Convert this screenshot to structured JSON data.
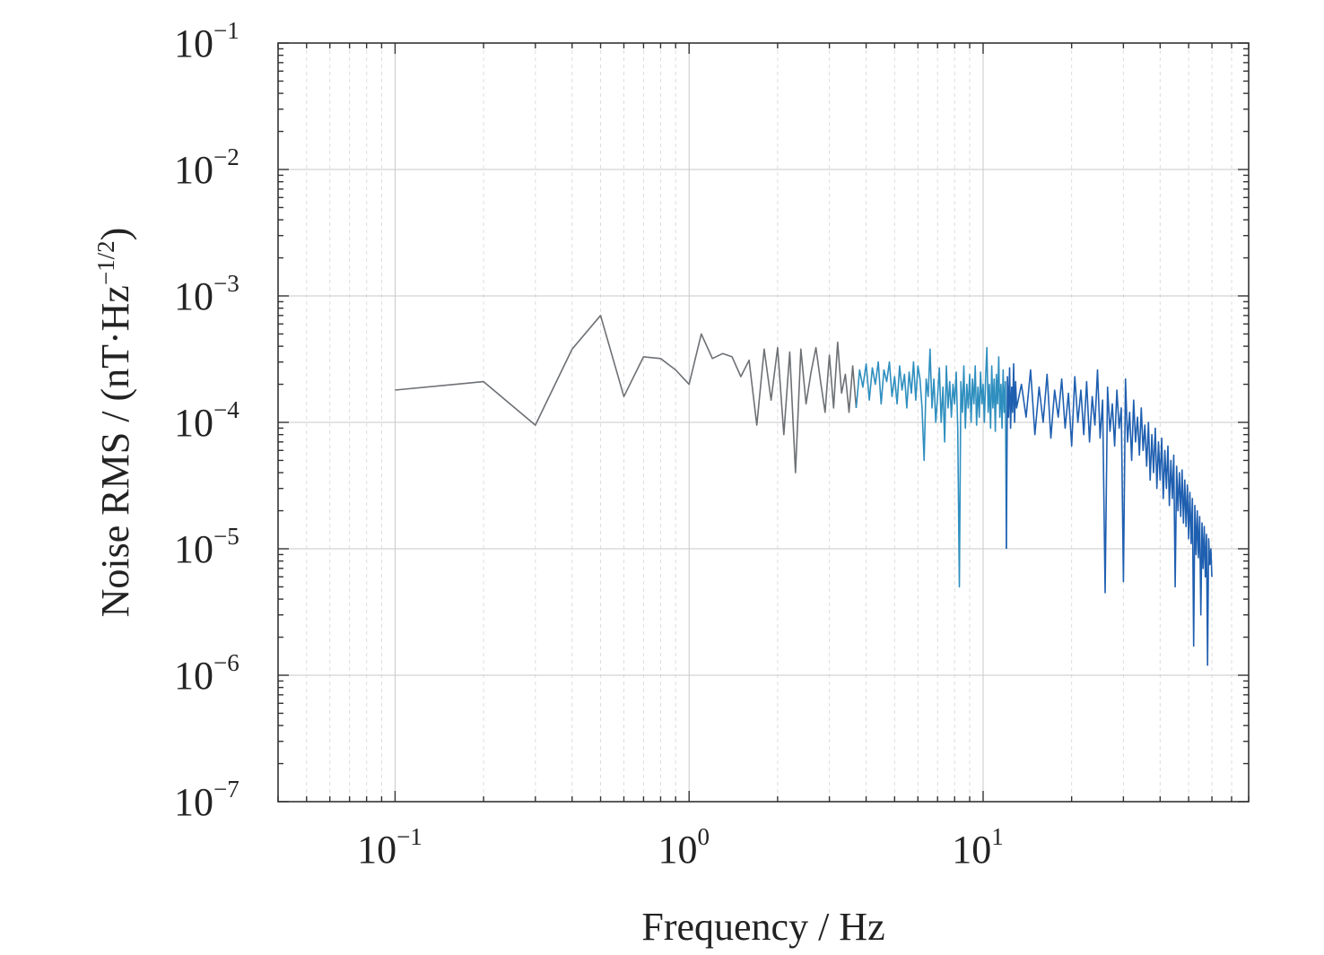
{
  "chart_data": {
    "type": "line",
    "xlabel": "Frequency / Hz",
    "ylabel": {
      "main": "Noise RMS / (nT·Hz",
      "sup": "−1/2",
      "close": ")"
    },
    "xscale": "log",
    "yscale": "log",
    "xlim": [
      0.04,
      80
    ],
    "ylim": [
      1e-07,
      0.1
    ],
    "x_ticks": [
      {
        "base": "10",
        "exp": "−1",
        "value": 0.1
      },
      {
        "base": "10",
        "exp": "0",
        "value": 1
      },
      {
        "base": "10",
        "exp": "1",
        "value": 10
      }
    ],
    "y_ticks": [
      {
        "base": "10",
        "exp": "−1",
        "value": 0.1
      },
      {
        "base": "10",
        "exp": "−2",
        "value": 0.01
      },
      {
        "base": "10",
        "exp": "−3",
        "value": 0.001
      },
      {
        "base": "10",
        "exp": "−4",
        "value": 0.0001
      },
      {
        "base": "10",
        "exp": "−5",
        "value": 1e-05
      },
      {
        "base": "10",
        "exp": "−6",
        "value": 1e-06
      },
      {
        "base": "10",
        "exp": "−7",
        "value": 1e-07
      }
    ],
    "grid": true,
    "colors": {
      "low": "#6d7074",
      "high": "#1f5fb0",
      "mid": "#2f8fbf"
    },
    "series": [
      {
        "frequency_resolution_hz": 0.1,
        "x_start": 0.1,
        "values": [
          0.00018,
          0.00021,
          9.5e-05,
          0.00038,
          0.0007,
          0.00016,
          0.00033,
          0.00032,
          0.00026,
          0.0002,
          0.0005,
          0.00032,
          0.00035,
          0.00033,
          0.00023,
          0.00031,
          9.5e-05,
          0.00038,
          0.00015,
          0.00039,
          8e-05,
          0.00036,
          4e-05,
          0.00038,
          0.00014,
          0.00025,
          0.00039,
          0.00021,
          0.00012,
          0.00034,
          0.00013,
          0.00043,
          0.00017,
          0.00024,
          0.00012,
          0.00028,
          0.00013,
          0.00026,
          0.00019,
          0.00029,
          0.00015,
          0.00027,
          0.0002,
          0.0003,
          0.00014,
          0.00026,
          0.00021,
          0.0003,
          0.00016,
          0.00023,
          0.00014,
          0.00028,
          0.00018,
          0.00024,
          0.00013,
          0.00025,
          0.00017,
          0.0003,
          0.00015,
          0.00028,
          0.00022,
          0.00013,
          5e-05,
          0.00022,
          0.00016,
          0.00038,
          0.00013,
          0.00022,
          0.0001,
          0.00016,
          0.00027,
          0.0001,
          0.00019,
          7e-05,
          0.00028,
          0.00013,
          0.00021,
          0.00011,
          0.0002,
          0.00014,
          0.00025,
          9e-05,
          5e-06,
          0.00021,
          0.00012,
          0.00028,
          9e-05,
          0.0002,
          0.00013,
          0.00024,
          0.0001,
          0.00022,
          0.00014,
          0.00028,
          9.5e-05,
          0.00019,
          0.00011,
          0.00025,
          0.00014,
          0.0002,
          0.0001,
          0.00023,
          0.00039,
          0.00012,
          0.0002,
          9e-05,
          0.00028,
          0.00013,
          0.00022,
          8.5e-05,
          0.00024,
          0.00014,
          0.00033,
          0.00011,
          0.0002,
          9e-05,
          0.00026,
          0.00012,
          0.00021,
          1e-05,
          0.00023,
          0.00011,
          0.00027,
          9e-05,
          0.00019,
          0.00012,
          0.00029,
          0.0001,
          0.00021,
          0.00013
        ]
      },
      {
        "frequency_resolution_hz": 0.5,
        "x_start": 13.5,
        "values": [
          0.0002,
          0.00011,
          0.00026,
          8e-05,
          0.00019,
          0.0001,
          0.00024,
          7.5e-05,
          0.00018,
          0.00011,
          0.00022,
          9e-05,
          0.00017,
          6.5e-05,
          0.00023,
          0.0001,
          0.00018,
          8e-05,
          0.00021,
          7e-05,
          0.00016,
          9.5e-05,
          0.00026,
          7.5e-05,
          0.00015,
          4.5e-06,
          0.00019,
          8.5e-05,
          0.00014,
          6.5e-05,
          0.00018,
          9e-05,
          0.00013,
          5.5e-06,
          0.00022,
          7e-05,
          0.00012,
          5e-05,
          0.00015,
          7e-05,
          0.00011,
          5.5e-05,
          0.00013,
          6e-05,
          9.5e-05,
          4.5e-05,
          0.0001,
          3.5e-05,
          8e-05,
          4e-05,
          9e-05,
          3e-05,
          7e-05,
          3.5e-05,
          7.5e-05,
          2.5e-05,
          6e-05,
          3e-05,
          6.5e-05,
          2.2e-05,
          5e-05,
          2.5e-05,
          5.5e-05,
          5e-06,
          4.5e-05,
          2e-05,
          4e-05,
          1.8e-05,
          4.2e-05,
          1.6e-05,
          3.5e-05,
          1.5e-05,
          3.2e-05,
          1.2e-05,
          2.8e-05,
          1.1e-05,
          2.5e-05,
          1.7e-06,
          2.2e-05,
          9e-06,
          2e-05,
          8.5e-06,
          1.8e-05,
          3e-06,
          1.6e-05,
          7e-06,
          1.5e-05,
          6e-06,
          1.3e-05,
          1.2e-06,
          1.2e-05,
          7.5e-06,
          1e-05,
          6e-06
        ]
      }
    ]
  }
}
